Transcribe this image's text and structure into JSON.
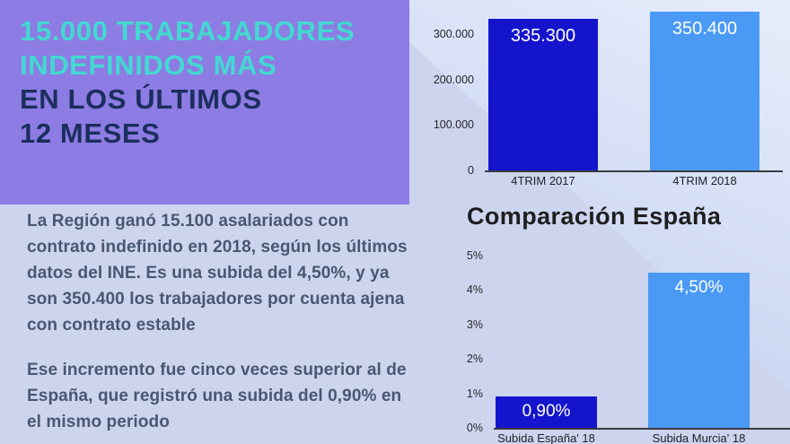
{
  "banner": {
    "title_line1": "15.000 TRABAJADORES",
    "title_line2": "INDEFINIDOS MÁS",
    "subtitle_line1": "EN LOS ÚLTIMOS",
    "subtitle_line2": "12 MESES"
  },
  "body": {
    "paragraph1": "La Región ganó 15.100 asalariados con contrato indefinido en 2018, según los últimos datos del INE. Es una subida del 4,50%, y ya son 350.400 los trabajadores por cuenta ajena con contrato estable",
    "paragraph2": "Ese incremento fue cinco veces superior al de España, que registró una subida del 0,90% en el mismo periodo"
  },
  "chart_data": [
    {
      "type": "bar",
      "title": "",
      "categories": [
        "4TRIM 2017",
        "4TRIM 2018"
      ],
      "values": [
        335300,
        350400
      ],
      "value_labels": [
        "335.300",
        "350.400"
      ],
      "bar_colors": [
        "#1414cd",
        "#4a9af5"
      ],
      "ylim": [
        0,
        360000
      ],
      "ytick_values": [
        0,
        100000,
        200000,
        300000
      ],
      "ytick_labels": [
        "0",
        "100.000",
        "200.000",
        "300.000"
      ],
      "grid": false,
      "legend": "none"
    },
    {
      "type": "bar",
      "title": "Comparación España",
      "categories": [
        "Subida España' 18",
        "Subida Murcia' 18"
      ],
      "values": [
        0.9,
        4.5
      ],
      "value_labels": [
        "0,90%",
        "4,50%"
      ],
      "bar_colors": [
        "#1414cd",
        "#4a9af5"
      ],
      "ylim": [
        0,
        5.2
      ],
      "ytick_values": [
        0,
        1,
        2,
        3,
        4,
        5
      ],
      "ytick_labels": [
        "0%",
        "1%",
        "2%",
        "3%",
        "4%",
        "5%"
      ],
      "grid": false,
      "legend": "none"
    }
  ],
  "colors": {
    "banner_bg": "#8c7ce3",
    "title_teal": "#43d8d1",
    "subtitle_navy": "#1c2e5e",
    "body_text": "#485772",
    "bar_dark_blue": "#1414cd",
    "bar_light_blue": "#4a9af5",
    "background": "#cdd4ee"
  }
}
